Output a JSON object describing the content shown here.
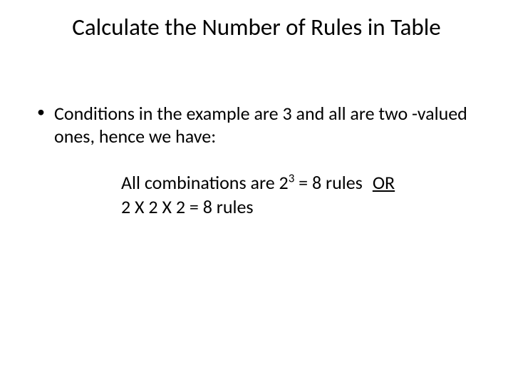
{
  "slide": {
    "title": "Calculate the Number of Rules in Table",
    "bullet1": "Conditions in the example are 3 and all are two -valued ones, hence we have:",
    "line1_prefix": "All combinations are  2",
    "line1_exp": "3",
    "line1_suffix": " = 8 rules",
    "line1_or": "OR",
    "line2": "2 X 2 X  2 = 8 rules"
  },
  "style": {
    "background_color": "#ffffff",
    "text_color": "#000000",
    "title_fontsize": 33,
    "body_fontsize": 26,
    "font_family": "Calibri"
  }
}
